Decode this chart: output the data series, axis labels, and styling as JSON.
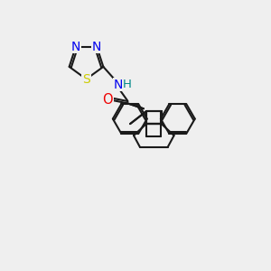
{
  "bg_color": "#efefef",
  "bond_color": "#1a1a1a",
  "bond_width": 1.5,
  "atom_colors": {
    "N": "#0000ee",
    "S": "#cccc00",
    "O": "#ee0000",
    "H": "#008888",
    "C": "#1a1a1a"
  },
  "font_size": 9.5
}
